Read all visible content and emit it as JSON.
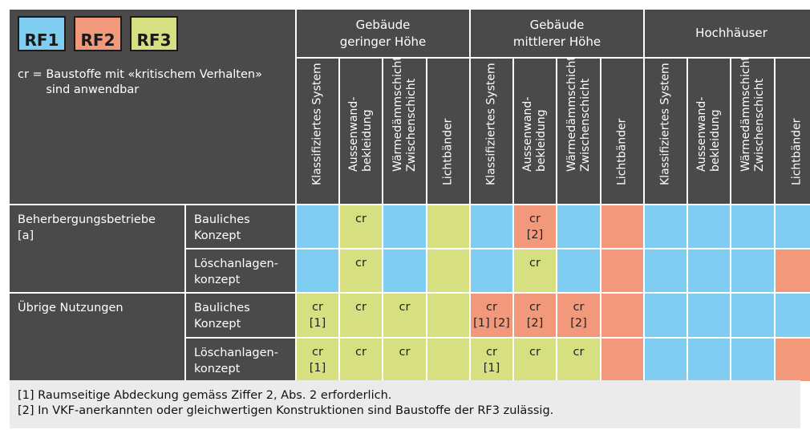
{
  "legend": {
    "badges": [
      {
        "label": "RF1",
        "color": "#7fcdf0"
      },
      {
        "label": "RF2",
        "color": "#f2997b"
      },
      {
        "label": "RF3",
        "color": "#d6e081"
      }
    ],
    "key": "cr = ",
    "description": "Baustoffe mit «kritischem Verhalten»\nsind anwendbar"
  },
  "groups": [
    "Gebäude\ngeringer Höhe",
    "Gebäude\nmittlerer Höhe",
    "Hochhäuser"
  ],
  "subheaders": [
    "Klassifiziertes System",
    "Aussenwand-\nbekleidung",
    "Wärmedämmschicht,\nZwischenschicht",
    "Lichtbänder",
    "Klassifiziertes System",
    "Aussenwand-\nbekleidung",
    "Wärmedämmschicht,\nZwischenschicht",
    "Lichtbänder",
    "Klassifiziertes System",
    "Aussenwand-\nbekleidung",
    "Wärmedämmschicht,\nZwischenschicht",
    "Lichtbänder"
  ],
  "sections": [
    {
      "label": "Beherbergungsbetriebe\n[a]"
    },
    {
      "label": "Übrige Nutzungen"
    }
  ],
  "rows": [
    {
      "concept": "Bauliches\nKonzept",
      "cells": [
        {
          "c": "blue",
          "t": ""
        },
        {
          "c": "green",
          "t": "cr"
        },
        {
          "c": "blue",
          "t": ""
        },
        {
          "c": "green",
          "t": ""
        },
        {
          "c": "blue",
          "t": ""
        },
        {
          "c": "red",
          "t": "cr\n[2]"
        },
        {
          "c": "blue",
          "t": ""
        },
        {
          "c": "red",
          "t": ""
        },
        {
          "c": "blue",
          "t": ""
        },
        {
          "c": "blue",
          "t": ""
        },
        {
          "c": "blue",
          "t": ""
        },
        {
          "c": "blue",
          "t": ""
        }
      ]
    },
    {
      "concept": "Löschanlagen-\nkonzept",
      "cells": [
        {
          "c": "blue",
          "t": ""
        },
        {
          "c": "green",
          "t": "cr"
        },
        {
          "c": "blue",
          "t": ""
        },
        {
          "c": "green",
          "t": ""
        },
        {
          "c": "blue",
          "t": ""
        },
        {
          "c": "green",
          "t": "cr"
        },
        {
          "c": "blue",
          "t": ""
        },
        {
          "c": "red",
          "t": ""
        },
        {
          "c": "blue",
          "t": ""
        },
        {
          "c": "blue",
          "t": ""
        },
        {
          "c": "blue",
          "t": ""
        },
        {
          "c": "red",
          "t": ""
        }
      ]
    },
    {
      "concept": "Bauliches\nKonzept",
      "cells": [
        {
          "c": "green",
          "t": "cr\n[1]"
        },
        {
          "c": "green",
          "t": "cr"
        },
        {
          "c": "green",
          "t": "cr"
        },
        {
          "c": "green",
          "t": ""
        },
        {
          "c": "red",
          "t": "cr\n[1] [2]"
        },
        {
          "c": "red",
          "t": "cr\n[2]"
        },
        {
          "c": "red",
          "t": "cr\n[2]"
        },
        {
          "c": "red",
          "t": ""
        },
        {
          "c": "blue",
          "t": ""
        },
        {
          "c": "blue",
          "t": ""
        },
        {
          "c": "blue",
          "t": ""
        },
        {
          "c": "blue",
          "t": ""
        }
      ]
    },
    {
      "concept": "Löschanlagen-\nkonzept",
      "cells": [
        {
          "c": "green",
          "t": "cr\n[1]"
        },
        {
          "c": "green",
          "t": "cr"
        },
        {
          "c": "green",
          "t": "cr"
        },
        {
          "c": "green",
          "t": ""
        },
        {
          "c": "green",
          "t": "cr\n[1]"
        },
        {
          "c": "green",
          "t": "cr"
        },
        {
          "c": "green",
          "t": "cr"
        },
        {
          "c": "red",
          "t": ""
        },
        {
          "c": "blue",
          "t": ""
        },
        {
          "c": "blue",
          "t": ""
        },
        {
          "c": "blue",
          "t": ""
        },
        {
          "c": "red",
          "t": ""
        }
      ]
    }
  ],
  "footnotes": [
    "[1] Raumseitige Abdeckung gemäss Ziffer 2, Abs. 2 erforderlich.",
    "[2] In VKF-anerkannten oder gleichwertigen Konstruktionen sind Baustoffe der RF3 zulässig."
  ]
}
